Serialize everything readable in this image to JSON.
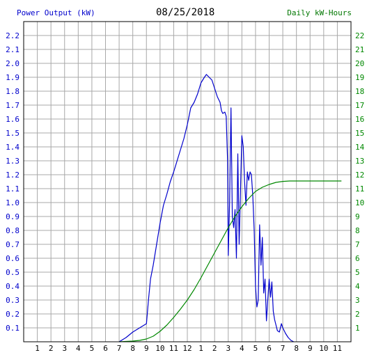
{
  "header": {
    "left_label": "Power Output (kW)",
    "date": "08/25/2018",
    "right_label": "Daily kW-Hours"
  },
  "colors": {
    "power": "#0000cc",
    "energy": "#008800",
    "grid": "#a8a8a8",
    "frame": "#000000"
  },
  "chart_data": {
    "type": "line",
    "title": "08/25/2018",
    "xlabel": "",
    "x_tick_labels": [
      "1",
      "2",
      "3",
      "4",
      "5",
      "6",
      "7",
      "8",
      "9",
      "10",
      "11",
      "12",
      "1",
      "2",
      "3",
      "4",
      "5",
      "6",
      "7",
      "8",
      "9",
      "10",
      "11"
    ],
    "y_left_label": "Power Output (kW)",
    "y_right_label": "Daily kW-Hours",
    "y_left_ticks": [
      "0.1",
      "0.2",
      "0.3",
      "0.4",
      "0.5",
      "0.6",
      "0.7",
      "0.8",
      "0.9",
      "1.0",
      "1.1",
      "1.2",
      "1.3",
      "1.4",
      "1.5",
      "1.6",
      "1.7",
      "1.8",
      "1.9",
      "2.0",
      "2.1",
      "2.2"
    ],
    "y_right_ticks": [
      "1",
      "2",
      "3",
      "4",
      "5",
      "6",
      "7",
      "8",
      "9",
      "10",
      "11",
      "12",
      "13",
      "14",
      "15",
      "16",
      "17",
      "18",
      "19",
      "20",
      "21",
      "22"
    ],
    "xlim": [
      0,
      24
    ],
    "ylim_left": [
      0,
      2.3
    ],
    "ylim_right": [
      0,
      23
    ],
    "grid": true,
    "series": [
      {
        "name": "Power Output (kW)",
        "axis": "left",
        "points": [
          [
            7.0,
            0.0
          ],
          [
            7.5,
            0.03
          ],
          [
            8.0,
            0.07
          ],
          [
            8.5,
            0.1
          ],
          [
            9.0,
            0.13
          ],
          [
            9.15,
            0.3
          ],
          [
            9.3,
            0.45
          ],
          [
            9.5,
            0.55
          ],
          [
            9.75,
            0.7
          ],
          [
            10.0,
            0.85
          ],
          [
            10.25,
            0.98
          ],
          [
            10.5,
            1.06
          ],
          [
            10.75,
            1.15
          ],
          [
            11.0,
            1.22
          ],
          [
            11.25,
            1.3
          ],
          [
            11.5,
            1.38
          ],
          [
            11.75,
            1.46
          ],
          [
            12.0,
            1.56
          ],
          [
            12.25,
            1.68
          ],
          [
            12.5,
            1.72
          ],
          [
            12.75,
            1.78
          ],
          [
            13.0,
            1.86
          ],
          [
            13.25,
            1.9
          ],
          [
            13.4,
            1.92
          ],
          [
            13.6,
            1.9
          ],
          [
            13.8,
            1.88
          ],
          [
            14.0,
            1.82
          ],
          [
            14.2,
            1.76
          ],
          [
            14.4,
            1.72
          ],
          [
            14.5,
            1.66
          ],
          [
            14.6,
            1.64
          ],
          [
            14.75,
            1.65
          ],
          [
            14.85,
            1.62
          ],
          [
            14.95,
            1.3
          ],
          [
            15.0,
            0.62
          ],
          [
            15.1,
            1.0
          ],
          [
            15.2,
            1.68
          ],
          [
            15.3,
            0.9
          ],
          [
            15.4,
            0.82
          ],
          [
            15.5,
            0.95
          ],
          [
            15.6,
            0.6
          ],
          [
            15.7,
            1.35
          ],
          [
            15.8,
            0.7
          ],
          [
            15.9,
            1.1
          ],
          [
            16.0,
            1.48
          ],
          [
            16.1,
            1.4
          ],
          [
            16.2,
            1.15
          ],
          [
            16.3,
            0.98
          ],
          [
            16.4,
            1.22
          ],
          [
            16.5,
            1.16
          ],
          [
            16.6,
            1.22
          ],
          [
            16.7,
            1.2
          ],
          [
            16.8,
            1.05
          ],
          [
            16.9,
            0.8
          ],
          [
            17.0,
            0.4
          ],
          [
            17.1,
            0.25
          ],
          [
            17.2,
            0.3
          ],
          [
            17.3,
            0.84
          ],
          [
            17.4,
            0.55
          ],
          [
            17.5,
            0.75
          ],
          [
            17.6,
            0.35
          ],
          [
            17.7,
            0.45
          ],
          [
            17.8,
            0.15
          ],
          [
            17.9,
            0.3
          ],
          [
            18.0,
            0.45
          ],
          [
            18.1,
            0.32
          ],
          [
            18.2,
            0.43
          ],
          [
            18.3,
            0.22
          ],
          [
            18.4,
            0.16
          ],
          [
            18.5,
            0.12
          ],
          [
            18.6,
            0.08
          ],
          [
            18.75,
            0.07
          ],
          [
            18.9,
            0.13
          ],
          [
            19.0,
            0.1
          ],
          [
            19.2,
            0.06
          ],
          [
            19.4,
            0.03
          ],
          [
            19.6,
            0.01
          ],
          [
            19.8,
            0.0
          ]
        ]
      },
      {
        "name": "Daily kW-Hours",
        "axis": "right",
        "points": [
          [
            7.0,
            0.0
          ],
          [
            8.0,
            0.05
          ],
          [
            8.5,
            0.1
          ],
          [
            9.0,
            0.2
          ],
          [
            9.5,
            0.4
          ],
          [
            10.0,
            0.75
          ],
          [
            10.5,
            1.2
          ],
          [
            11.0,
            1.75
          ],
          [
            11.5,
            2.35
          ],
          [
            12.0,
            3.0
          ],
          [
            12.5,
            3.75
          ],
          [
            13.0,
            4.6
          ],
          [
            13.5,
            5.5
          ],
          [
            14.0,
            6.4
          ],
          [
            14.5,
            7.3
          ],
          [
            15.0,
            8.2
          ],
          [
            15.5,
            9.0
          ],
          [
            16.0,
            9.7
          ],
          [
            16.5,
            10.3
          ],
          [
            17.0,
            10.8
          ],
          [
            17.5,
            11.1
          ],
          [
            18.0,
            11.3
          ],
          [
            18.5,
            11.45
          ],
          [
            19.0,
            11.52
          ],
          [
            19.5,
            11.55
          ],
          [
            20.0,
            11.55
          ],
          [
            22.0,
            11.55
          ],
          [
            23.3,
            11.55
          ]
        ]
      }
    ]
  }
}
